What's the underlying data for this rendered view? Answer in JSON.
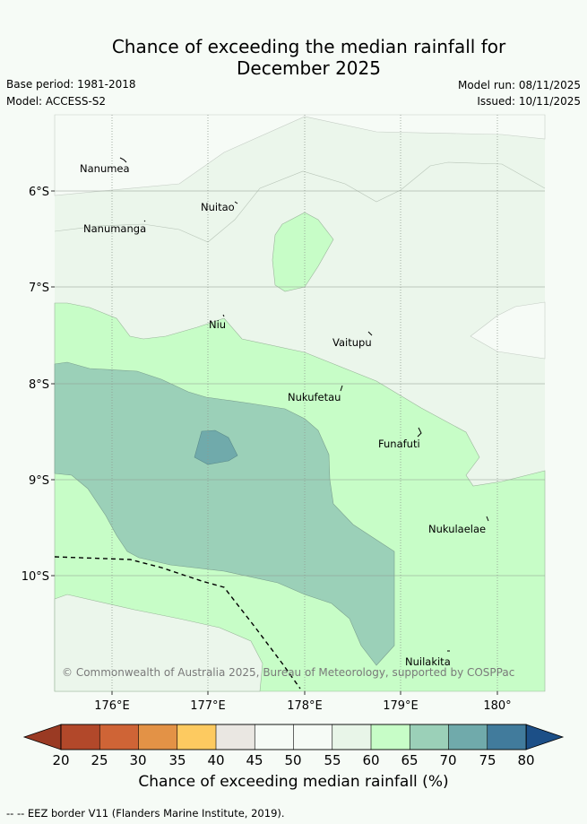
{
  "header": {
    "title_line1": "Chance of exceeding the median rainfall for",
    "title_line2": "December 2025",
    "base_period": "Base period: 1981-2018",
    "model": "Model: ACCESS-S2",
    "model_run": "Model run: 08/11/2025",
    "issued": "Issued: 10/11/2025"
  },
  "map": {
    "lat_labels": [
      "6°S",
      "7°S",
      "8°S",
      "9°S",
      "10°S"
    ],
    "lon_labels": [
      "176°E",
      "177°E",
      "178°E",
      "179°E",
      "180°"
    ],
    "copyright": "© Commonwealth of Australia 2025, Bureau of Meteorology, supported by COSPPac",
    "islands": [
      {
        "name": "Nanumea"
      },
      {
        "name": "Nuitao"
      },
      {
        "name": "Nanumanga"
      },
      {
        "name": "Niu"
      },
      {
        "name": "Vaitupu"
      },
      {
        "name": "Nukufetau"
      },
      {
        "name": "Funafuti"
      },
      {
        "name": "Nukulaelae"
      },
      {
        "name": "Nuilakita"
      }
    ]
  },
  "colorbar": {
    "ticks": [
      "20",
      "25",
      "30",
      "35",
      "40",
      "45",
      "50",
      "55",
      "60",
      "65",
      "70",
      "75",
      "80"
    ],
    "colors": [
      "#b2482a",
      "#cf6436",
      "#e39246",
      "#fdca60",
      "#eae7e2",
      "#f6fbf6",
      "#f6fbf6",
      "#e8f5e8",
      "#c7fdc7",
      "#9bd0b8",
      "#70aaab",
      "#417b9c"
    ],
    "low_extend_color": "#9a3a23",
    "high_extend_color": "#1c4f87",
    "label": "Chance of exceeding median rainfall (%)"
  },
  "footer": {
    "legend_text": "-- -- EEZ border V11 (Flanders Marine Institute, 2019)."
  }
}
